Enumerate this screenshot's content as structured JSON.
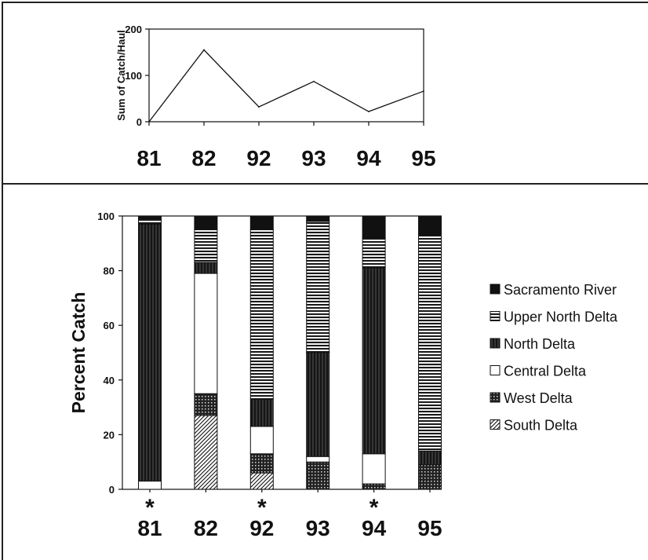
{
  "chart_data": [
    {
      "type": "line",
      "title": "",
      "xlabel": "",
      "ylabel": "Sum of Catch/Haul",
      "categories": [
        "81",
        "82",
        "92",
        "93",
        "94",
        "95"
      ],
      "values": [
        0,
        155,
        32,
        87,
        22,
        66
      ],
      "ylim": [
        0,
        200
      ],
      "yticks": [
        0,
        100,
        200
      ],
      "grid": false
    },
    {
      "type": "bar",
      "stacked": true,
      "title": "",
      "xlabel": "",
      "ylabel": "Percent Catch",
      "categories": [
        "81",
        "82",
        "92",
        "93",
        "94",
        "95"
      ],
      "ylim": [
        0,
        100
      ],
      "yticks": [
        0,
        20,
        40,
        60,
        80,
        100
      ],
      "grid": false,
      "legend_position": "right",
      "starred_categories": [
        "81",
        "92",
        "94"
      ],
      "star_symbol": "*",
      "series": [
        {
          "name": "South Delta",
          "pattern": "diagonal-hatch",
          "values": [
            0,
            27,
            6,
            0,
            0,
            0
          ]
        },
        {
          "name": "West Delta",
          "pattern": "dark-grid",
          "values": [
            0,
            8,
            7,
            10,
            2,
            9
          ]
        },
        {
          "name": "Central Delta",
          "pattern": "white",
          "values": [
            3,
            44,
            10,
            2,
            11,
            0
          ]
        },
        {
          "name": "North Delta",
          "pattern": "dark-vertical",
          "values": [
            94,
            4,
            10,
            38,
            68,
            5
          ]
        },
        {
          "name": "Upper North Delta",
          "pattern": "horizontal-stripes",
          "values": [
            2,
            12,
            62,
            48,
            11,
            79
          ]
        },
        {
          "name": "Sacramento River",
          "pattern": "solid-black",
          "values": [
            1,
            5,
            5,
            2,
            8,
            7
          ]
        }
      ],
      "legend_order": [
        "Sacramento River",
        "Upper North Delta",
        "North Delta",
        "Central Delta",
        "West Delta",
        "South Delta"
      ]
    }
  ],
  "colors": {
    "ink": "#111111",
    "background": "#ffffff"
  }
}
